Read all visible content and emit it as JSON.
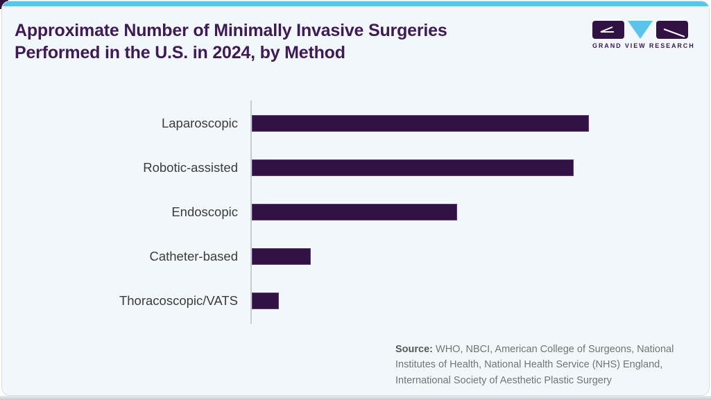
{
  "header": {
    "title": "Approximate Number of Minimally Invasive Surgeries Performed in the U.S. in 2024, by Method"
  },
  "logo": {
    "brand": "GRAND VIEW RESEARCH"
  },
  "chart_data": {
    "type": "bar",
    "orientation": "horizontal",
    "title": "Approximate Number of Minimally Invasive Surgeries Performed in the U.S. in 2024, by Method",
    "categories": [
      "Laparoscopic",
      "Robotic-assisted",
      "Endoscopic",
      "Catheter-based",
      "Thoracoscopic/VATS"
    ],
    "values_relative": [
      100,
      95.5,
      61,
      17.5,
      8
    ],
    "units": "relative bar length, % of largest bar (no numeric axis or value labels shown)",
    "xlabel": "",
    "ylabel": "",
    "xlim": [
      0,
      100
    ],
    "axis_ticks_visible": false,
    "gridlines": false,
    "legend": false,
    "bar_color": "#321245"
  },
  "source": {
    "label": "Source:",
    "text": "WHO, NBCI, American College of Surgeons, National Institutes of Health, National Health Service (NHS) England, International Society of Aesthetic Plastic Surgery"
  },
  "colors": {
    "accent_blue": "#5cc3ec",
    "brand_purple": "#321245",
    "title_purple": "#3e1b55",
    "card_background": "#f1f7fa",
    "card_border": "#d9e0e5",
    "label_gray": "#3c3c3c",
    "source_gray": "#6f757a"
  }
}
